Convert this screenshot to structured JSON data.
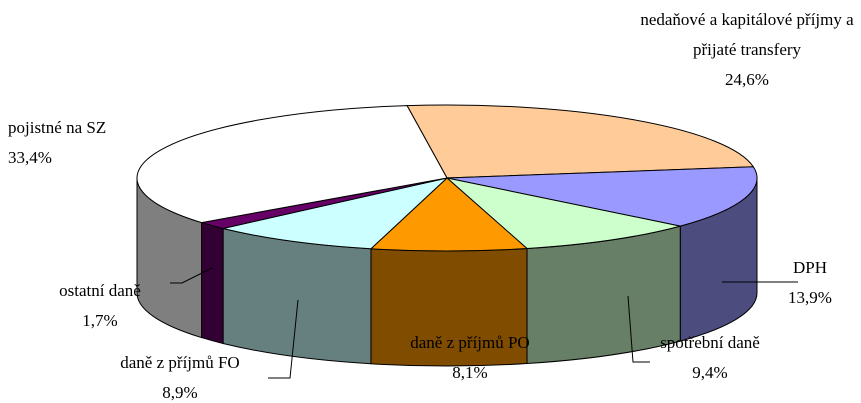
{
  "chart_data": {
    "type": "pie3d",
    "categories": [
      "nedaňové a kapitálové příjmy a přijaté transfery",
      "DPH",
      "spotřební daně",
      "daně z příjmů PO",
      "daně z příjmů FO",
      "ostatní daně",
      "pojistné na SZ"
    ],
    "values": [
      24.6,
      13.9,
      9.4,
      8.1,
      8.9,
      1.7,
      33.4
    ],
    "value_labels": [
      "24,6%",
      "13,9%",
      "9,4%",
      "8,1%",
      "8,9%",
      "1,7%",
      "33,4%"
    ],
    "colors": [
      "#FFCC99",
      "#9999FF",
      "#CCFFCC",
      "#FF9900",
      "#CCFFFF",
      "#660066",
      "#FFFFFF"
    ]
  }
}
